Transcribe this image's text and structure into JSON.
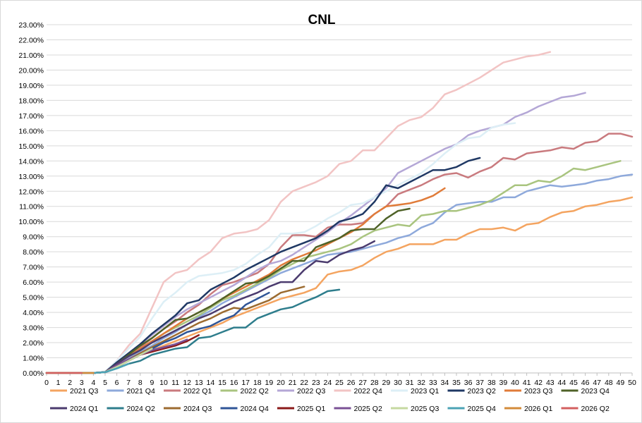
{
  "chart_data": {
    "type": "line",
    "title": "CNL",
    "xlabel": "",
    "ylabel": "",
    "xlim": [
      0,
      50
    ],
    "ylim": [
      0,
      23
    ],
    "y_unit": "%",
    "grid": true,
    "legend_position": "bottom",
    "x_ticks": [
      0,
      1,
      2,
      3,
      4,
      5,
      6,
      7,
      8,
      9,
      10,
      11,
      12,
      13,
      14,
      15,
      16,
      17,
      18,
      19,
      20,
      21,
      22,
      23,
      24,
      25,
      26,
      27,
      28,
      29,
      30,
      31,
      32,
      33,
      34,
      35,
      36,
      37,
      38,
      39,
      40,
      41,
      42,
      43,
      44,
      45,
      46,
      47,
      48,
      49,
      50
    ],
    "y_ticks": [
      "0.00%",
      "1.00%",
      "2.00%",
      "3.00%",
      "4.00%",
      "5.00%",
      "6.00%",
      "7.00%",
      "8.00%",
      "9.00%",
      "10.00%",
      "11.00%",
      "12.00%",
      "13.00%",
      "14.00%",
      "15.00%",
      "16.00%",
      "17.00%",
      "18.00%",
      "19.00%",
      "20.00%",
      "21.00%",
      "22.00%",
      "23.00%"
    ],
    "series": [
      {
        "name": "2021 Q3",
        "color": "#F4A460",
        "values": [
          0,
          0,
          0,
          0,
          0,
          0.05,
          0.4,
          0.9,
          1.2,
          1.5,
          1.8,
          2.1,
          2.4,
          2.7,
          3.0,
          3.3,
          3.7,
          4.0,
          4.3,
          4.6,
          4.9,
          5.1,
          5.3,
          5.6,
          6.5,
          6.7,
          6.8,
          7.1,
          7.6,
          8.0,
          8.2,
          8.5,
          8.5,
          8.5,
          8.8,
          8.8,
          9.2,
          9.5,
          9.5,
          9.6,
          9.4,
          9.8,
          9.9,
          10.3,
          10.6,
          10.7,
          11.0,
          11.1,
          11.3,
          11.4,
          11.6
        ]
      },
      {
        "name": "2021 Q4",
        "color": "#8EA9DB",
        "values": [
          0,
          0,
          0,
          0,
          0,
          0.05,
          0.5,
          1.0,
          1.4,
          1.8,
          2.3,
          2.7,
          3.2,
          3.7,
          4.1,
          4.6,
          5.0,
          5.4,
          5.8,
          6.2,
          6.6,
          6.9,
          7.2,
          7.5,
          7.8,
          7.9,
          8.0,
          8.2,
          8.4,
          8.6,
          8.9,
          9.1,
          9.6,
          9.9,
          10.6,
          11.1,
          11.2,
          11.3,
          11.3,
          11.6,
          11.6,
          12.0,
          12.2,
          12.4,
          12.3,
          12.4,
          12.5,
          12.7,
          12.8,
          13.0,
          13.1
        ]
      },
      {
        "name": "2022 Q1",
        "color": "#C97A7E",
        "values": [
          0,
          0,
          0,
          0,
          0,
          0.05,
          0.6,
          1.2,
          1.7,
          2.3,
          2.9,
          3.4,
          4.0,
          4.5,
          5.2,
          5.8,
          6.0,
          6.3,
          6.6,
          7.2,
          8.3,
          9.1,
          9.1,
          9.0,
          9.6,
          9.8,
          9.8,
          9.9,
          10.5,
          11.0,
          11.8,
          12.1,
          12.4,
          12.8,
          13.1,
          13.2,
          12.9,
          13.3,
          13.6,
          14.2,
          14.1,
          14.5,
          14.6,
          14.7,
          14.9,
          14.8,
          15.2,
          15.3,
          15.8,
          15.8,
          15.6
        ]
      },
      {
        "name": "2022 Q2",
        "color": "#A9C47F",
        "values": [
          0,
          0,
          0,
          0,
          0,
          0.05,
          0.6,
          1.1,
          1.6,
          2.0,
          2.6,
          3.0,
          3.4,
          3.8,
          4.3,
          4.8,
          5.1,
          5.5,
          5.9,
          6.3,
          6.8,
          7.2,
          7.6,
          7.8,
          8.0,
          8.2,
          8.5,
          9.0,
          9.4,
          9.6,
          9.8,
          9.7,
          10.4,
          10.5,
          10.7,
          10.7,
          10.9,
          11.1,
          11.4,
          11.9,
          12.4,
          12.4,
          12.7,
          12.6,
          13.0,
          13.5,
          13.4,
          13.6,
          13.8,
          14.0
        ]
      },
      {
        "name": "2022 Q3",
        "color": "#B4A7D6",
        "values": [
          0,
          0,
          0,
          0,
          0,
          0.05,
          0.7,
          1.3,
          1.9,
          2.5,
          3.1,
          3.7,
          4.2,
          4.6,
          5.0,
          5.4,
          5.8,
          6.3,
          6.8,
          7.2,
          7.4,
          7.8,
          8.3,
          8.8,
          9.3,
          9.9,
          10.4,
          11.0,
          11.6,
          12.2,
          13.2,
          13.6,
          14.0,
          14.4,
          14.8,
          15.1,
          15.7,
          16.0,
          16.2,
          16.4,
          16.9,
          17.2,
          17.6,
          17.9,
          18.2,
          18.3,
          18.5
        ]
      },
      {
        "name": "2022 Q4",
        "color": "#F2C4C4",
        "values": [
          0,
          0,
          0,
          0,
          0,
          0.1,
          0.8,
          1.8,
          2.6,
          4.3,
          6.0,
          6.6,
          6.8,
          7.5,
          8.0,
          8.9,
          9.2,
          9.3,
          9.5,
          10.1,
          11.3,
          12.0,
          12.3,
          12.6,
          13.0,
          13.8,
          14.0,
          14.7,
          14.7,
          15.5,
          16.3,
          16.7,
          16.9,
          17.5,
          18.4,
          18.7,
          19.1,
          19.5,
          20.0,
          20.5,
          20.7,
          20.9,
          21.0,
          21.2
        ]
      },
      {
        "name": "2023 Q1",
        "color": "#DDEFF6",
        "values": [
          0,
          0,
          0,
          0,
          0,
          0.1,
          0.8,
          1.6,
          2.4,
          3.6,
          4.7,
          5.3,
          6.0,
          6.4,
          6.5,
          6.6,
          6.8,
          7.2,
          7.8,
          8.3,
          9.2,
          9.2,
          9.3,
          9.7,
          10.2,
          10.6,
          11.1,
          11.2,
          11.6,
          12.0,
          12.4,
          12.8,
          13.2,
          13.8,
          14.5,
          15.1,
          15.5,
          15.6,
          16.2,
          16.4,
          16.5
        ]
      },
      {
        "name": "2023 Q2",
        "color": "#1F3864",
        "values": [
          0,
          0,
          0,
          0,
          0,
          0.05,
          0.7,
          1.3,
          1.9,
          2.6,
          3.2,
          3.8,
          4.6,
          4.8,
          5.5,
          5.9,
          6.3,
          6.8,
          7.2,
          7.6,
          8.0,
          8.3,
          8.6,
          8.9,
          9.4,
          10.0,
          10.2,
          10.5,
          11.3,
          12.4,
          12.2,
          12.6,
          13.0,
          13.4,
          13.4,
          13.6,
          14.0,
          14.2
        ]
      },
      {
        "name": "2023 Q3",
        "color": "#E07B39",
        "values": [
          0,
          0,
          0,
          0,
          0,
          0.05,
          0.6,
          1.1,
          1.6,
          2.1,
          2.6,
          3.1,
          3.6,
          4.0,
          4.4,
          4.9,
          5.3,
          5.7,
          6.1,
          6.5,
          7.1,
          7.5,
          7.8,
          8.1,
          8.5,
          8.9,
          9.3,
          9.8,
          10.5,
          11.0,
          11.1,
          11.2,
          11.4,
          11.7,
          12.2
        ]
      },
      {
        "name": "2023 Q4",
        "color": "#4F6228",
        "values": [
          0,
          0,
          0,
          0,
          0,
          0.05,
          0.6,
          1.2,
          1.8,
          2.3,
          2.9,
          3.5,
          3.6,
          4.0,
          4.4,
          4.9,
          5.4,
          5.9,
          6.0,
          6.4,
          6.9,
          7.4,
          7.4,
          8.3,
          8.6,
          8.9,
          9.4,
          9.5,
          9.5,
          10.2,
          10.7,
          10.85
        ]
      },
      {
        "name": "2024 Q1",
        "color": "#4B3B6E",
        "values": [
          0,
          0,
          0,
          0,
          0,
          0.05,
          0.6,
          1.1,
          1.5,
          2.0,
          2.4,
          2.8,
          3.2,
          3.6,
          3.9,
          4.3,
          4.7,
          5.0,
          5.3,
          5.7,
          6.0,
          6.0,
          6.8,
          7.4,
          7.3,
          7.8,
          8.1,
          8.3,
          8.7
        ]
      },
      {
        "name": "2024 Q2",
        "color": "#2E7D8C",
        "values": [
          0,
          0,
          0,
          0,
          0,
          0.05,
          0.3,
          0.6,
          0.8,
          1.2,
          1.4,
          1.6,
          1.7,
          2.3,
          2.4,
          2.7,
          3.0,
          3.0,
          3.6,
          3.9,
          4.2,
          4.35,
          4.7,
          5.0,
          5.4,
          5.5
        ]
      },
      {
        "name": "2024 Q3",
        "color": "#9C6B30",
        "values": [
          0,
          0,
          0,
          0,
          0,
          0.05,
          0.5,
          0.9,
          1.3,
          1.7,
          2.1,
          2.5,
          2.9,
          3.3,
          3.6,
          4.0,
          4.3,
          4.2,
          4.5,
          4.8,
          5.3,
          5.5,
          5.7
        ]
      },
      {
        "name": "2024 Q4",
        "color": "#2F5597",
        "values": [
          0,
          0,
          0,
          0,
          0,
          0.05,
          0.4,
          0.8,
          1.2,
          1.6,
          2.0,
          2.3,
          2.7,
          2.9,
          3.1,
          3.5,
          3.8,
          4.5,
          4.9,
          5.3
        ]
      },
      {
        "name": "2025 Q1",
        "color": "#8B1A1A",
        "values": [
          0,
          0,
          0,
          0,
          0,
          0.05,
          0.4,
          0.8,
          1.2,
          1.4,
          1.6,
          1.8,
          2.1,
          2.5
        ]
      },
      {
        "name": "2025 Q2",
        "color": "#7A5195",
        "values": [
          0,
          0,
          0,
          0,
          0,
          0.05,
          0.5,
          0.9,
          1.2,
          1.5,
          1.7,
          1.9,
          2.2
        ]
      },
      {
        "name": "2025 Q3",
        "color": "#C6D9A0",
        "values": [
          0,
          0,
          0,
          0,
          0,
          0.05,
          0.4,
          0.8,
          1.2,
          1.6
        ]
      },
      {
        "name": "2025 Q4",
        "color": "#4BA3B5",
        "values": [
          0,
          0,
          0,
          0,
          0,
          0.05,
          0.3,
          0.6
        ]
      },
      {
        "name": "2026 Q1",
        "color": "#D38B3A",
        "values": [
          0,
          0,
          0,
          0,
          0
        ]
      },
      {
        "name": "2026 Q2",
        "color": "#D35F5F",
        "values": [
          0,
          0,
          0,
          0
        ]
      }
    ]
  }
}
